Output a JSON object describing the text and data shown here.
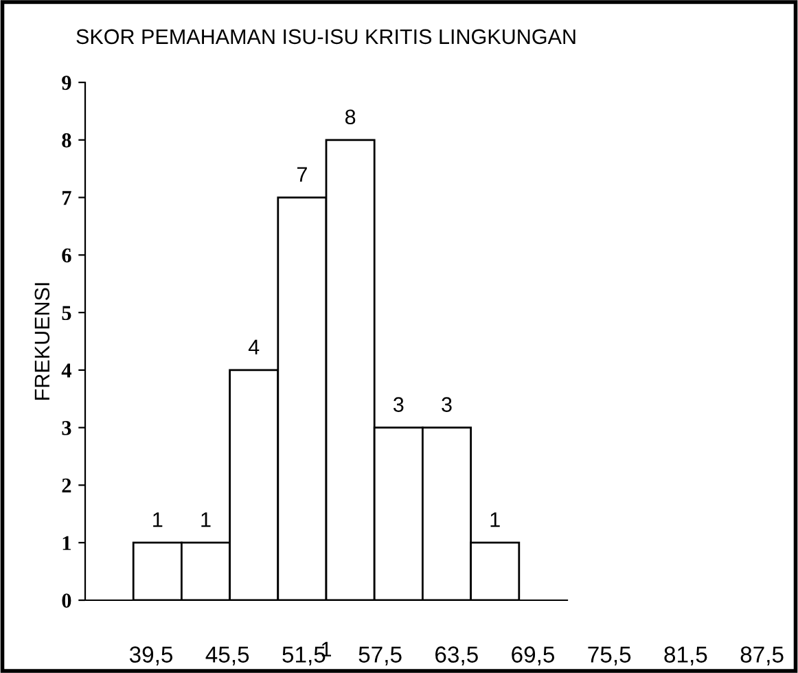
{
  "chart_data": {
    "type": "bar",
    "title": "SKOR PEMAHAMAN ISU-ISU KRITIS LINGKUNGAN",
    "ylabel": "FREKUENSI",
    "xlabel": "1",
    "categories": [
      null,
      null,
      null,
      null,
      null,
      null,
      null,
      null,
      null,
      null
    ],
    "values": [
      null,
      1,
      1,
      4,
      7,
      8,
      3,
      3,
      1,
      null
    ],
    "color": "#ffffff",
    "ylim": [
      0,
      9
    ],
    "yticks": [
      0,
      1,
      2,
      3,
      4,
      5,
      6,
      7,
      8,
      9
    ],
    "data_labels": true,
    "grid": false,
    "legend": false,
    "annotations": [
      "39,5",
      "45,5",
      "51,5",
      "57,5",
      "63,5",
      "69,5",
      "75,5",
      "81,5",
      "87,5"
    ]
  }
}
